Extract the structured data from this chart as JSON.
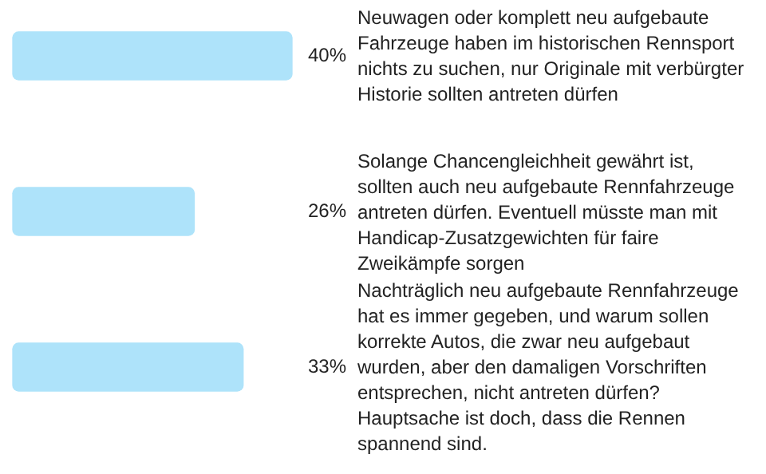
{
  "chart_data": {
    "type": "bar",
    "orientation": "horizontal",
    "categories": [
      "Neuwagen oder komplett neu aufgebaute Fahrzeuge haben im historischen Rennsport nichts zu suchen, nur Originale mit verbürgter Historie sollten antreten dürfen",
      "Solange Chancengleichheit gewährt ist, sollten auch neu aufgebaute Rennfahrzeuge antreten dürfen. Eventuell müsste man mit Handicap-Zusatzgewichten für faire Zweikämpfe sorgen",
      "Nachträglich neu aufgebaute Rennfahrzeuge hat es immer gegeben, und warum sollen korrekte Autos, die zwar neu aufgebaut wurden, aber den damaligen Vorschriften entsprechen, nicht antreten dürfen? Hauptsache ist doch, dass die Rennen spannend sind."
    ],
    "values": [
      40,
      26,
      33
    ],
    "value_labels": [
      "40%",
      "26%",
      "33%"
    ],
    "color": "#aee3fa",
    "xlim": [
      0,
      40
    ],
    "tick_labels": false,
    "legend": false
  }
}
